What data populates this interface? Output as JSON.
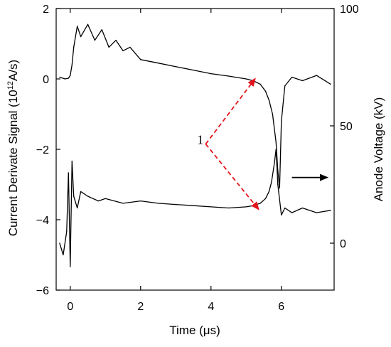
{
  "chart_data": {
    "type": "line",
    "xlabel": "Time  (μs)",
    "ylabel_left": "Current  Derivate  Signal  (10",
    "ylabel_left_sup": "12",
    "ylabel_left_end": "A/s)",
    "ylabel_right": "Anode Voltage  (kV)",
    "xlim": [
      -0.4,
      7.5
    ],
    "ylim_left": [
      -6,
      2
    ],
    "ylim_right": [
      -20,
      100
    ],
    "x_ticks": [
      0,
      2,
      4,
      6
    ],
    "y_left_ticks": [
      -6,
      -4,
      -2,
      0,
      2
    ],
    "y_right_ticks": [
      0,
      50,
      100
    ],
    "x_tick_labels": [
      "0",
      "2",
      "4",
      "6"
    ],
    "y_left_tick_labels": [
      "−6",
      "−4",
      "−2",
      "0",
      "2"
    ],
    "y_right_tick_labels": [
      "0",
      "50",
      "100"
    ],
    "grid": false,
    "series": [
      {
        "axis": "left",
        "color": "#000000",
        "x": [
          -0.3,
          -0.15,
          -0.05,
          0.0,
          0.05,
          0.1,
          0.2,
          0.3,
          0.5,
          0.7,
          0.9,
          1.1,
          1.3,
          1.5,
          1.7,
          2.0,
          2.5,
          3.0,
          3.5,
          4.0,
          4.5,
          5.0,
          5.2,
          5.4,
          5.55,
          5.65,
          5.75,
          5.85,
          5.9,
          5.95,
          6.0,
          6.1,
          6.3,
          6.6,
          7.0,
          7.4
        ],
        "values": [
          0.05,
          0.0,
          0.02,
          0.1,
          0.4,
          0.9,
          1.5,
          1.2,
          1.55,
          1.1,
          1.4,
          0.9,
          1.1,
          0.8,
          0.9,
          0.55,
          0.45,
          0.35,
          0.25,
          0.15,
          0.08,
          0.0,
          -0.05,
          -0.15,
          -0.35,
          -0.6,
          -1.0,
          -1.8,
          -2.6,
          -3.1,
          -1.2,
          -0.2,
          0.05,
          -0.05,
          0.1,
          -0.15
        ]
      },
      {
        "axis": "right",
        "color": "#000000",
        "x": [
          -0.3,
          -0.2,
          -0.1,
          -0.05,
          0.0,
          0.05,
          0.1,
          0.2,
          0.3,
          0.5,
          0.8,
          1.0,
          1.5,
          2.0,
          2.5,
          3.0,
          3.5,
          4.0,
          4.5,
          5.0,
          5.2,
          5.4,
          5.55,
          5.65,
          5.72,
          5.8,
          5.85,
          5.9,
          6.0,
          6.1,
          6.3,
          6.6,
          7.0,
          7.4
        ],
        "values": [
          0,
          -5,
          5,
          30,
          -10,
          35,
          20,
          15,
          22,
          20,
          18,
          19,
          17,
          18,
          17,
          16.5,
          16,
          15.5,
          15,
          15.5,
          16,
          17,
          19,
          22,
          26,
          34,
          40,
          25,
          12,
          15,
          13,
          15,
          13,
          14
        ]
      }
    ],
    "annotations": [
      {
        "text": "1",
        "x": 3.7,
        "y": -1.85,
        "color": "#000000"
      },
      {
        "type": "arrow",
        "from": [
          3.85,
          -1.85
        ],
        "to": [
          5.25,
          0.0
        ],
        "color": "#e3141c",
        "style": "dashed"
      },
      {
        "type": "arrow",
        "from": [
          3.85,
          -1.85
        ],
        "to": [
          5.35,
          -3.7
        ],
        "color": "#e3141c",
        "style": "dashed"
      },
      {
        "type": "arrow",
        "from": [
          6.3,
          -2.8
        ],
        "to": [
          7.3,
          -2.8
        ],
        "color": "#000000",
        "style": "solid",
        "meaning": "right axis"
      }
    ]
  }
}
